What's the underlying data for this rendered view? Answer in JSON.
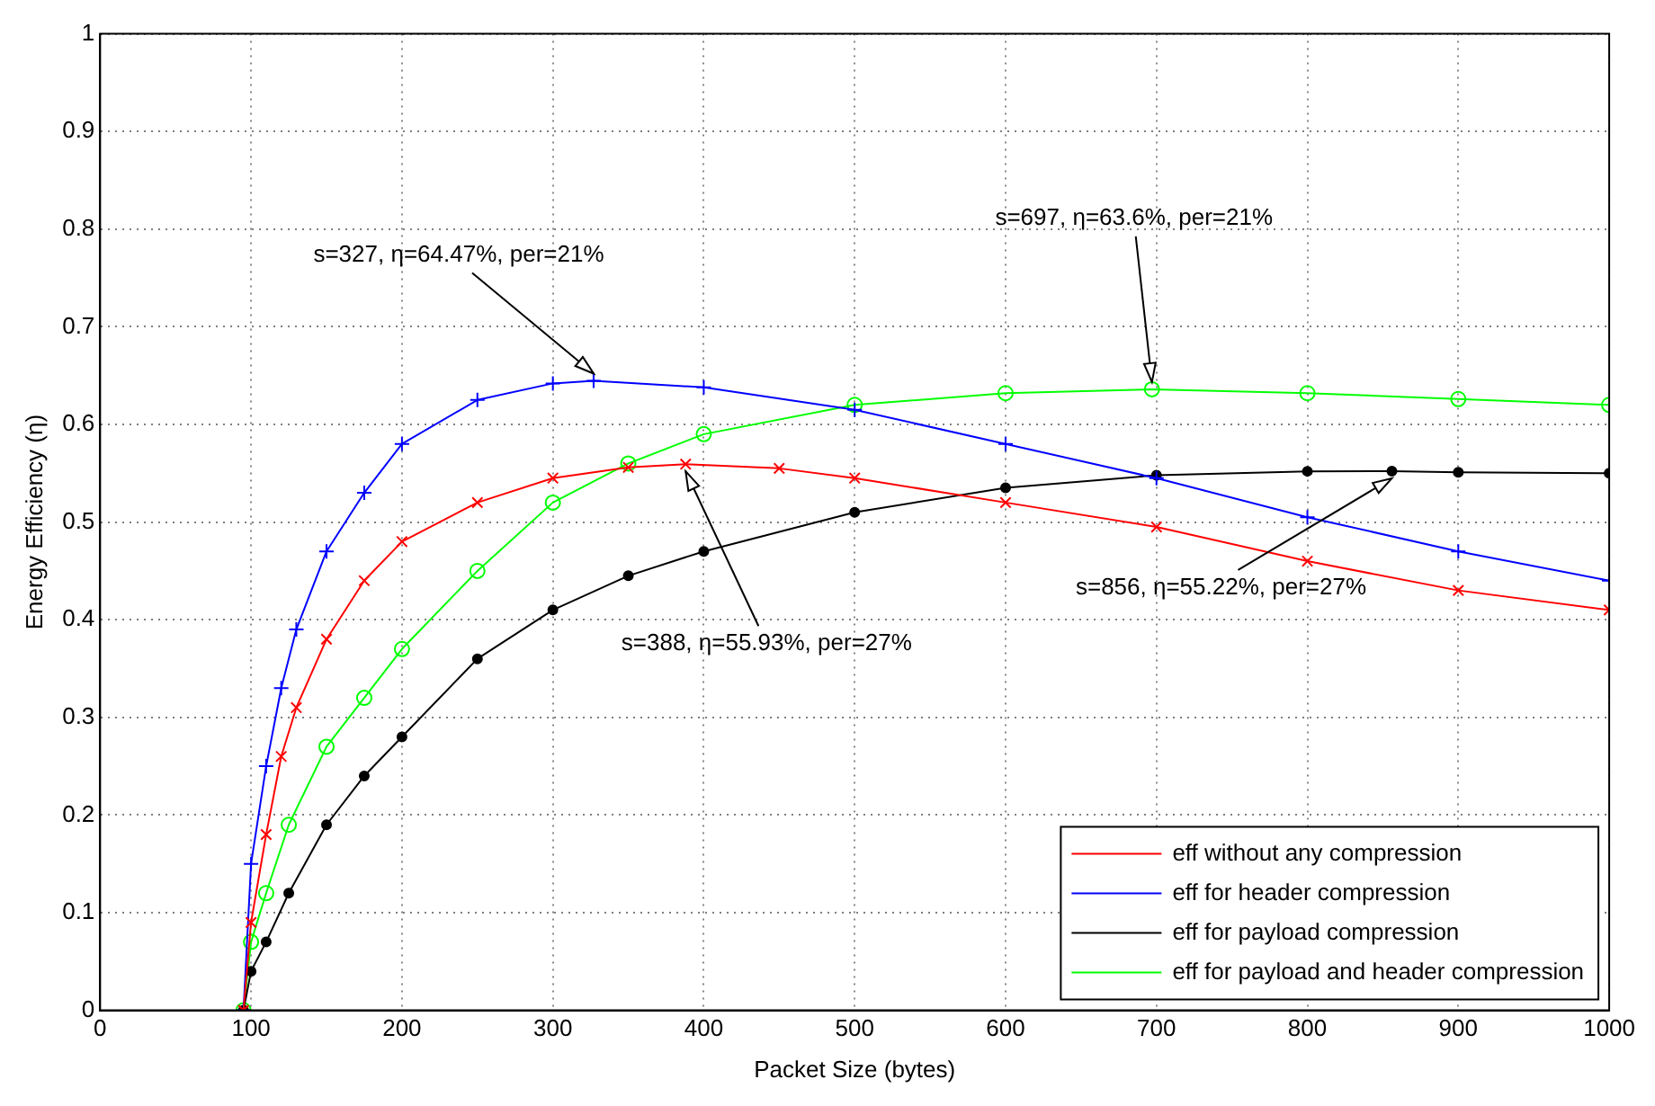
{
  "chart_data": {
    "type": "line",
    "xlabel": "Packet Size (bytes)",
    "ylabel": "Energy Efficiency (η)",
    "xlim": [
      0,
      1000
    ],
    "xticks": [
      0,
      100,
      200,
      300,
      400,
      500,
      600,
      700,
      800,
      900,
      1000
    ],
    "ylim": [
      0,
      1
    ],
    "yticks": [
      0,
      0.1,
      0.2,
      0.3,
      0.4,
      0.5,
      0.6,
      0.7,
      0.8,
      0.9,
      1
    ],
    "grid": true,
    "legend": "bottom right",
    "line_style": "solid",
    "series": [
      {
        "name": "eff without any compression",
        "color": "#ff0000",
        "marker": "cross",
        "x": [
          95,
          100,
          110,
          120,
          130,
          150,
          175,
          200,
          250,
          300,
          350,
          388,
          450,
          500,
          600,
          700,
          800,
          900,
          1000
        ],
        "values": [
          0,
          0.09,
          0.18,
          0.26,
          0.31,
          0.38,
          0.44,
          0.48,
          0.52,
          0.545,
          0.556,
          0.5593,
          0.555,
          0.545,
          0.52,
          0.495,
          0.46,
          0.43,
          0.41
        ]
      },
      {
        "name": "eff for header compression",
        "color": "#0000ff",
        "marker": "plus",
        "x": [
          95,
          100,
          110,
          120,
          130,
          150,
          175,
          200,
          250,
          300,
          327,
          400,
          500,
          600,
          700,
          800,
          900,
          1000
        ],
        "values": [
          0,
          0.15,
          0.25,
          0.33,
          0.39,
          0.47,
          0.53,
          0.58,
          0.625,
          0.642,
          0.6447,
          0.638,
          0.615,
          0.58,
          0.545,
          0.505,
          0.47,
          0.44
        ]
      },
      {
        "name": "eff for payload compression",
        "color": "#000000",
        "marker": "circle",
        "x": [
          95,
          100,
          110,
          125,
          150,
          175,
          200,
          250,
          300,
          350,
          400,
          500,
          600,
          700,
          800,
          856,
          900,
          1000
        ],
        "values": [
          0,
          0.04,
          0.07,
          0.12,
          0.19,
          0.24,
          0.28,
          0.36,
          0.41,
          0.445,
          0.47,
          0.51,
          0.535,
          0.548,
          0.552,
          0.5522,
          0.551,
          0.55
        ]
      },
      {
        "name": "eff for payload and header compression",
        "color": "#00ff00",
        "marker": "circle_open",
        "x": [
          95,
          100,
          110,
          125,
          150,
          175,
          200,
          250,
          300,
          350,
          400,
          500,
          600,
          697,
          800,
          900,
          1000
        ],
        "values": [
          0,
          0.07,
          0.12,
          0.19,
          0.27,
          0.32,
          0.37,
          0.45,
          0.52,
          0.56,
          0.59,
          0.62,
          0.632,
          0.636,
          0.632,
          0.626,
          0.62
        ]
      }
    ],
    "annotations": [
      {
        "text": "s=327, η=64.47%, per=21%",
        "x": 327,
        "y": 0.6447
      },
      {
        "text": "s=697, η=63.6%, per=21%",
        "x": 697,
        "y": 0.636
      },
      {
        "text": "s=388, η=55.93%, per=27%",
        "x": 388,
        "y": 0.5593
      },
      {
        "text": "s=856, η=55.22%, per=27%",
        "x": 856,
        "y": 0.5522
      }
    ]
  }
}
